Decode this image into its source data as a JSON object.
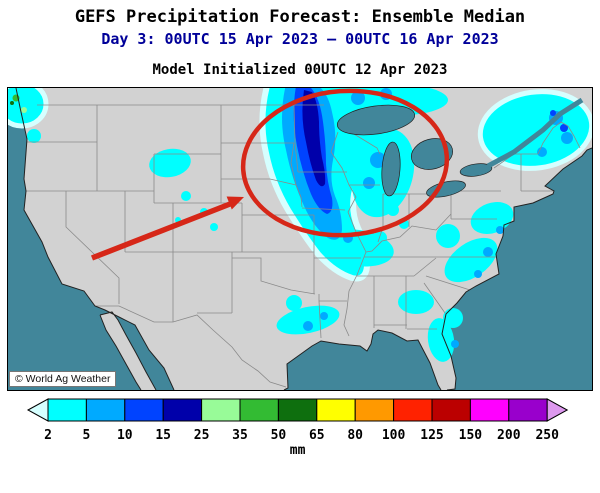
{
  "header": {
    "title": "GEFS Precipitation Forecast: Ensemble Median",
    "subtitle": "Day 3: 00UTC 15 Apr 2023 — 00UTC 16 Apr 2023",
    "model_init": "Model Initialized 00UTC 12 Apr 2023"
  },
  "map": {
    "watermark": "© World Ag Weather"
  },
  "colorbar": {
    "unit_label": "mm",
    "tick_labels": [
      "2",
      "5",
      "10",
      "15",
      "25",
      "35",
      "50",
      "65",
      "80",
      "100",
      "125",
      "150",
      "200",
      "250"
    ],
    "colors": [
      "#d5ffff",
      "#00ffff",
      "#00aaff",
      "#0043ff",
      "#0000aa",
      "#98fb98",
      "#33bb33",
      "#0e6f0e",
      "#ffff00",
      "#ff9900",
      "#ff2200",
      "#bb0000",
      "#ff00ff",
      "#9900cc",
      "#dd99ee"
    ]
  },
  "palette": {
    "ocean": "#41869a",
    "land": "#d2d2d2",
    "state_border": "#8a8a8a",
    "coastline": "#222222",
    "annotation_red": "#d62718",
    "subtitle_blue": "#000099"
  }
}
